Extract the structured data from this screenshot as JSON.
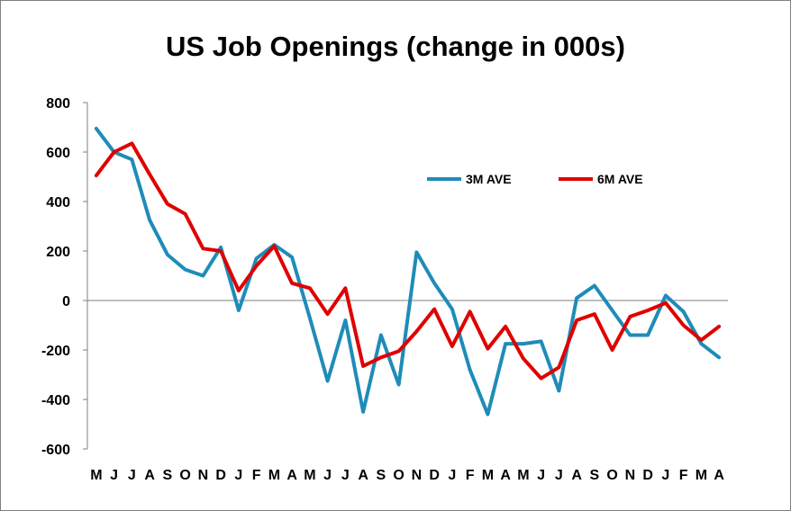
{
  "chart_data": {
    "type": "line",
    "title": "US Job Openings (change in 000s)",
    "xlabel": "",
    "ylabel": "",
    "ylim": [
      -600,
      800
    ],
    "yticks": [
      800,
      600,
      400,
      200,
      0,
      -200,
      -400,
      -600
    ],
    "grid": false,
    "legend_position": "upper-right",
    "categories": [
      "M",
      "J",
      "J",
      "A",
      "S",
      "O",
      "N",
      "D",
      "J",
      "F",
      "M",
      "A",
      "M",
      "J",
      "J",
      "A",
      "S",
      "O",
      "N",
      "D",
      "J",
      "F",
      "M",
      "A",
      "M",
      "J",
      "J",
      "A",
      "S",
      "O",
      "N",
      "D",
      "J",
      "F",
      "M",
      "A"
    ],
    "series": [
      {
        "name": "3M AVE",
        "color": "#1f8cb8",
        "values": [
          695,
          600,
          570,
          325,
          185,
          125,
          100,
          215,
          -40,
          170,
          225,
          175,
          -70,
          -325,
          -80,
          -450,
          -140,
          -340,
          195,
          70,
          -35,
          -280,
          -460,
          -175,
          -175,
          -165,
          -365,
          10,
          60,
          -40,
          -140,
          -140,
          20,
          -45,
          -175,
          -230
        ]
      },
      {
        "name": "6M AVE",
        "color": "#e00000",
        "values": [
          505,
          600,
          635,
          510,
          390,
          350,
          210,
          200,
          40,
          140,
          220,
          70,
          50,
          -55,
          50,
          -265,
          -230,
          -205,
          -125,
          -35,
          -185,
          -45,
          -195,
          -105,
          -235,
          -315,
          -270,
          -80,
          -55,
          -200,
          -65,
          -40,
          -10,
          -100,
          -160,
          -105
        ]
      }
    ]
  }
}
